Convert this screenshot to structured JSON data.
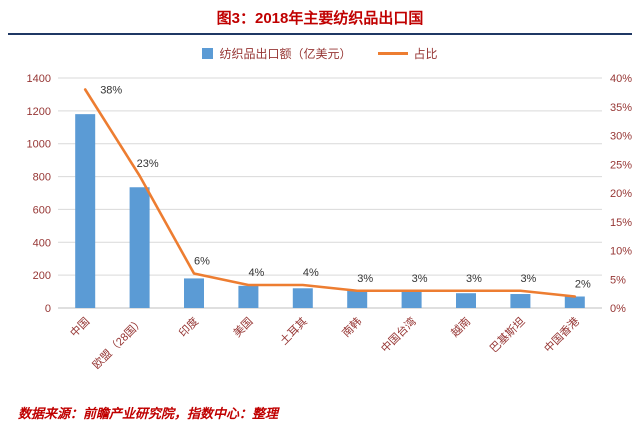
{
  "title": "图3：2018年主要纺织品出口国",
  "source": "数据来源：前瞻产业研究院，指数中心：整理",
  "legend": {
    "bar_label": "纺织品出口额（亿美元）",
    "line_label": "占比"
  },
  "colors": {
    "bar": "#5B9BD5",
    "line": "#ED7D31",
    "title": "#C00000",
    "axis_text": "#963634",
    "grid": "#D9D9D9",
    "divider": "#1F3864",
    "data_label": "#333333"
  },
  "chart_data": {
    "type": "combo-bar-line",
    "categories": [
      "中国",
      "欧盟（28国）",
      "印度",
      "美国",
      "土耳其",
      "南韩",
      "中国台湾",
      "越南",
      "巴基斯坦",
      "中国香港"
    ],
    "series": [
      {
        "name": "纺织品出口额（亿美元）",
        "type": "bar",
        "axis": "left",
        "values": [
          1180,
          735,
          180,
          135,
          120,
          105,
          100,
          90,
          85,
          70
        ]
      },
      {
        "name": "占比",
        "type": "line",
        "axis": "right",
        "values": [
          38,
          23,
          6,
          4,
          4,
          3,
          3,
          3,
          3,
          2
        ],
        "labels": [
          "38%",
          "23%",
          "6%",
          "4%",
          "4%",
          "3%",
          "3%",
          "3%",
          "3%",
          "2%"
        ]
      }
    ],
    "left_axis": {
      "min": 0,
      "max": 1400,
      "step": 200,
      "ticks": [
        "0",
        "200",
        "400",
        "600",
        "800",
        "1000",
        "1200",
        "1400"
      ]
    },
    "right_axis": {
      "min": 0,
      "max": 40,
      "step": 5,
      "ticks": [
        "0%",
        "5%",
        "10%",
        "15%",
        "20%",
        "25%",
        "30%",
        "35%",
        "40%"
      ]
    },
    "grid": true,
    "legend_position": "top"
  }
}
